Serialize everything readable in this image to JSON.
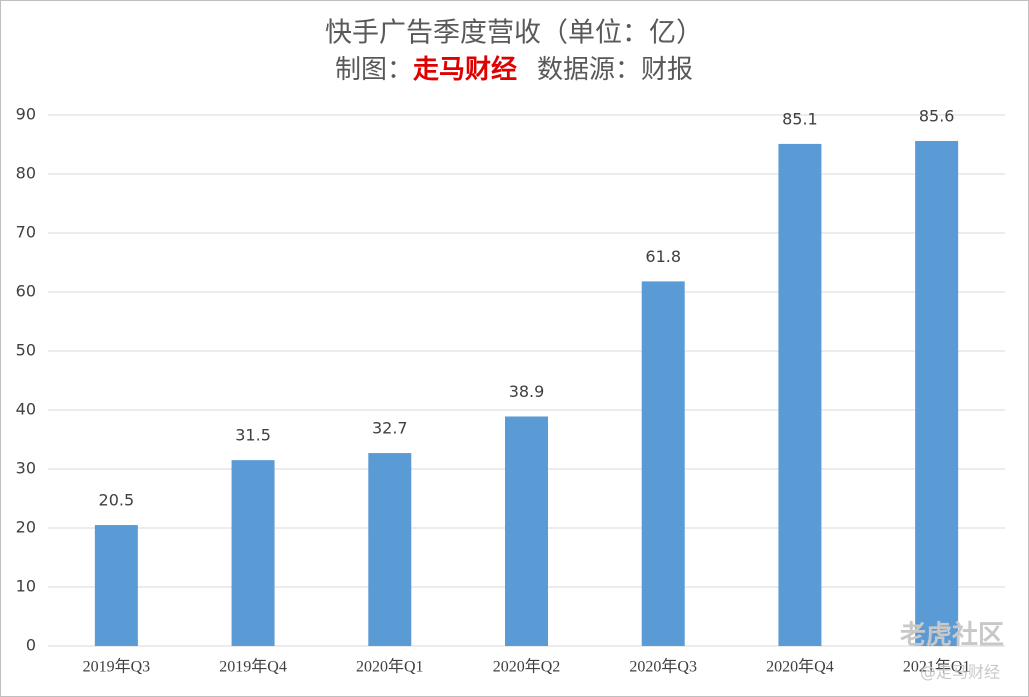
{
  "chart_data": {
    "type": "bar",
    "title": "快手广告季度营收（单位：亿）",
    "subtitle": [
      "制图：",
      "走马财经",
      "数据源：财报"
    ],
    "categories": [
      "2019年Q3",
      "2019年Q4",
      "2020年Q1",
      "2020年Q2",
      "2020年Q3",
      "2020年Q4",
      "2021年Q1"
    ],
    "values": [
      20.5,
      31.5,
      32.7,
      38.9,
      61.8,
      85.1,
      85.6
    ],
    "color": "#5b9bd5",
    "ylim": [
      0,
      90
    ],
    "yticks": [
      0,
      10,
      20,
      30,
      40,
      50,
      60,
      70,
      80,
      90
    ],
    "grid": true,
    "watermark": [
      "老虎社区",
      "@走马财经"
    ]
  }
}
